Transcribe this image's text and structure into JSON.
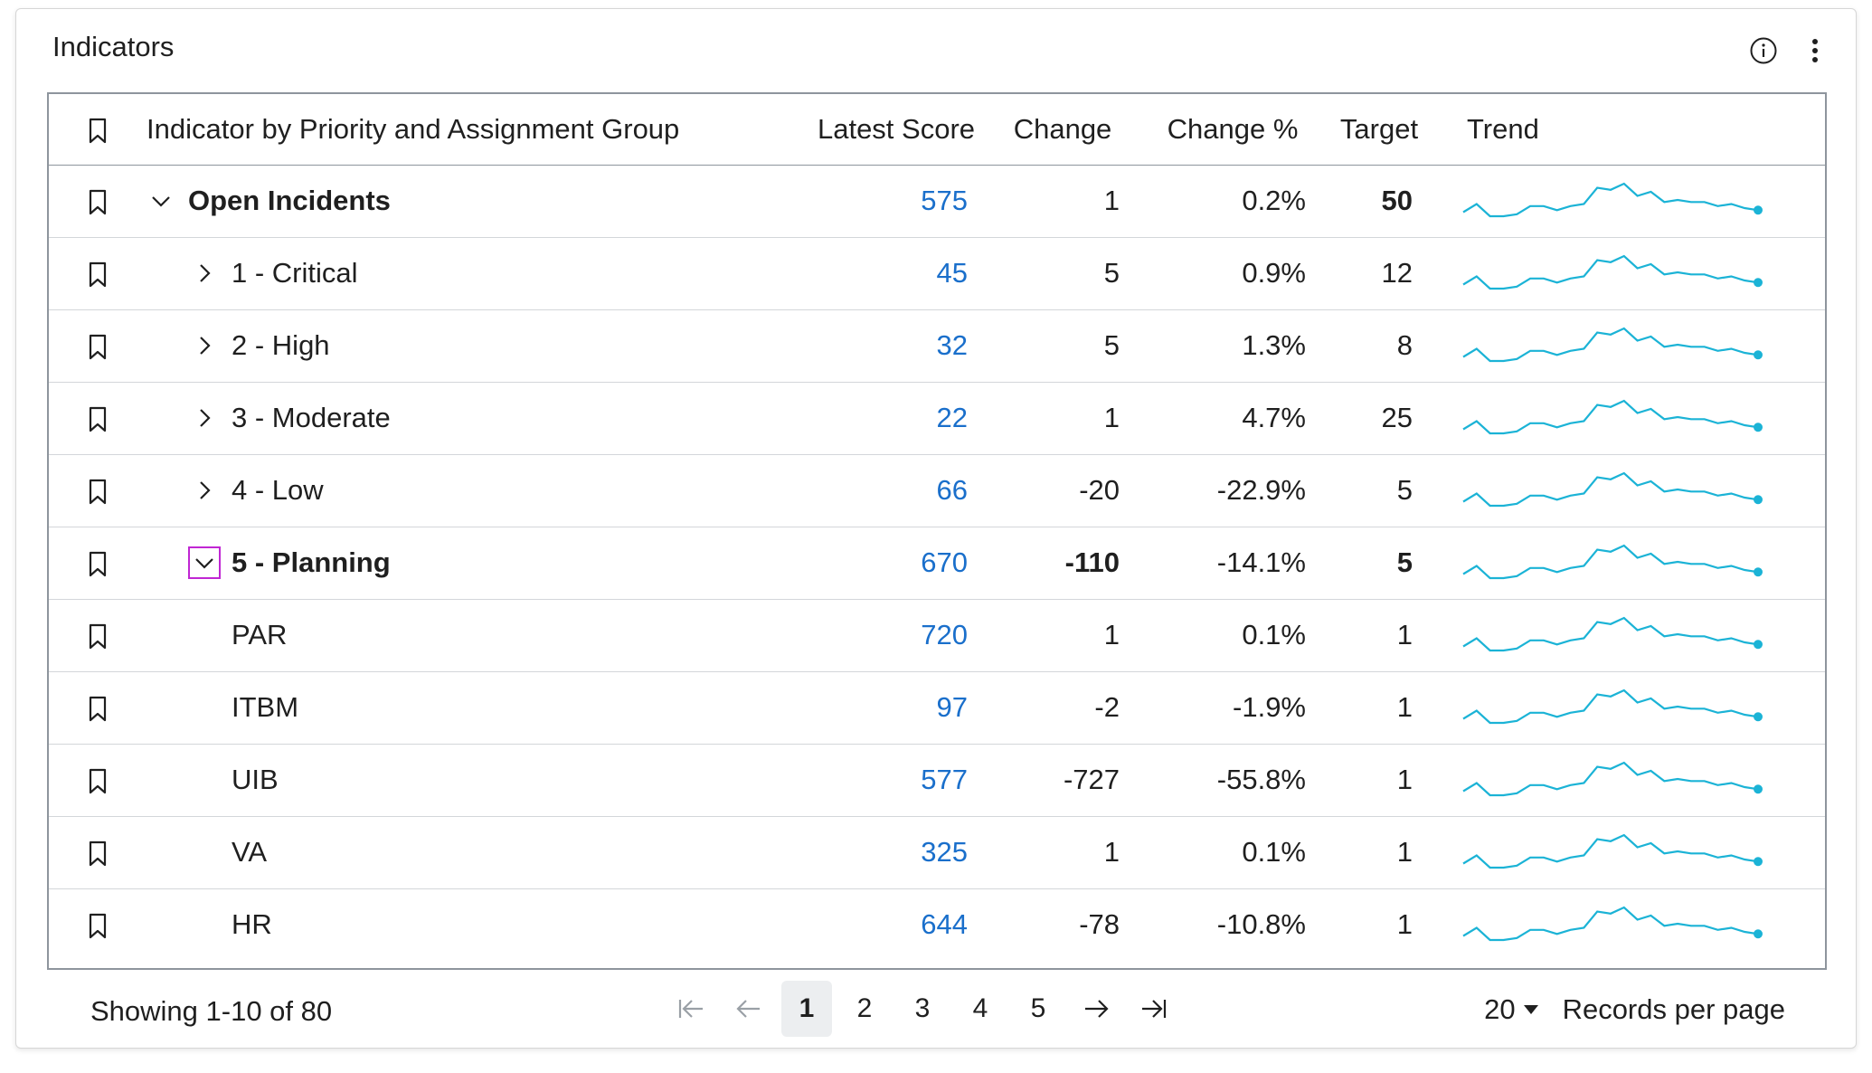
{
  "widget": {
    "title": "Indicators",
    "info_icon": "info-icon",
    "more_icon": "more-vertical-icon"
  },
  "columns": {
    "name": "Indicator by Priority and Assignment Group",
    "score": "Latest Score",
    "change": "Change",
    "change_pct": "Change %",
    "target": "Target",
    "trend": "Trend"
  },
  "rows": [
    {
      "name": "Open Incidents",
      "level": 0,
      "toggle": "expanded",
      "bold": true,
      "score": "575",
      "change": "1",
      "change_pct": "0.2%",
      "target": "50",
      "target_bold": true
    },
    {
      "name": "1 - Critical",
      "level": 1,
      "toggle": "collapsed",
      "bold": false,
      "score": "45",
      "change": "5",
      "change_pct": "0.9%",
      "target": "12"
    },
    {
      "name": "2 - High",
      "level": 1,
      "toggle": "collapsed",
      "bold": false,
      "score": "32",
      "change": "5",
      "change_pct": "1.3%",
      "target": "8"
    },
    {
      "name": "3 - Moderate",
      "level": 1,
      "toggle": "collapsed",
      "bold": false,
      "score": "22",
      "change": "1",
      "change_pct": "4.7%",
      "target": "25"
    },
    {
      "name": "4 - Low",
      "level": 1,
      "toggle": "collapsed",
      "bold": false,
      "score": "66",
      "change": "-20",
      "change_pct": "-22.9%",
      "target": "5"
    },
    {
      "name": "5 - Planning",
      "level": 1,
      "toggle": "expanded",
      "focused": true,
      "bold": true,
      "score": "670",
      "change": "-110",
      "change_bold": true,
      "change_pct": "-14.1%",
      "target": "5",
      "target_bold": true
    },
    {
      "name": "PAR",
      "level": 2,
      "toggle": "none",
      "bold": false,
      "score": "720",
      "change": "1",
      "change_pct": "0.1%",
      "target": "1"
    },
    {
      "name": "ITBM",
      "level": 2,
      "toggle": "none",
      "bold": false,
      "score": "97",
      "change": "-2",
      "change_pct": "-1.9%",
      "target": "1"
    },
    {
      "name": "UIB",
      "level": 2,
      "toggle": "none",
      "bold": false,
      "score": "577",
      "change": "-727",
      "change_pct": "-55.8%",
      "target": "1"
    },
    {
      "name": "VA",
      "level": 2,
      "toggle": "none",
      "bold": false,
      "score": "325",
      "change": "1",
      "change_pct": "0.1%",
      "target": "1"
    },
    {
      "name": "HR",
      "level": 2,
      "toggle": "none",
      "bold": false,
      "score": "644",
      "change": "-78",
      "change_pct": "-10.8%",
      "target": "1"
    }
  ],
  "trend_series": [
    4,
    8,
    2,
    2,
    3,
    7,
    7,
    5,
    7,
    8,
    16,
    15,
    18,
    12,
    14,
    9,
    10,
    9,
    9,
    7,
    8,
    6,
    5
  ],
  "colors": {
    "trend_line": "#1bb3d6",
    "score_link": "#1a6fcb",
    "focus_outline": "#c026d3"
  },
  "footer": {
    "showing": "Showing 1-10 of 80",
    "pages": [
      "1",
      "2",
      "3",
      "4",
      "5"
    ],
    "active_page": "1",
    "records_value": "20",
    "records_label": "Records per page"
  }
}
